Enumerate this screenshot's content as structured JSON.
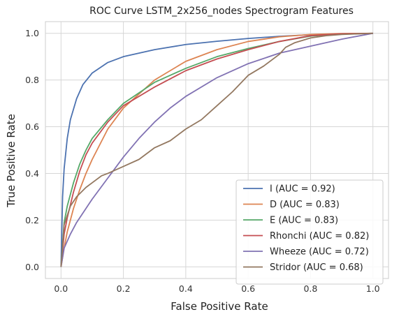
{
  "chart_data": {
    "type": "line",
    "title": "ROC Curve LSTM_2x256_nodes Spectrogram Features",
    "xlabel": "False Positive Rate",
    "ylabel": "True Positive Rate",
    "xlim": [
      -0.05,
      1.05
    ],
    "ylim": [
      -0.05,
      1.05
    ],
    "xticks": [
      0.0,
      0.2,
      0.4,
      0.6,
      0.8,
      1.0
    ],
    "yticks": [
      0.0,
      0.2,
      0.4,
      0.6,
      0.8,
      1.0
    ],
    "xtick_labels": [
      "0.0",
      "0.2",
      "0.4",
      "0.6",
      "0.8",
      "1.0"
    ],
    "ytick_labels": [
      "0.0",
      "0.2",
      "0.4",
      "0.6",
      "0.8",
      "1.0"
    ],
    "grid": true,
    "legend_position": "lower-right",
    "series": [
      {
        "name": "I (AUC = 0.92)",
        "color": "#4c72b0",
        "x": [
          0.0,
          0.005,
          0.01,
          0.02,
          0.03,
          0.05,
          0.07,
          0.1,
          0.15,
          0.2,
          0.3,
          0.4,
          0.5,
          0.6,
          0.7,
          0.8,
          0.9,
          1.0
        ],
        "y": [
          0.0,
          0.3,
          0.42,
          0.55,
          0.63,
          0.72,
          0.78,
          0.83,
          0.875,
          0.9,
          0.93,
          0.952,
          0.966,
          0.978,
          0.987,
          0.994,
          0.998,
          1.0
        ]
      },
      {
        "name": "D (AUC = 0.83)",
        "color": "#dd8452",
        "x": [
          0.0,
          0.01,
          0.02,
          0.04,
          0.06,
          0.08,
          0.1,
          0.15,
          0.2,
          0.3,
          0.4,
          0.5,
          0.6,
          0.7,
          0.8,
          0.9,
          1.0
        ],
        "y": [
          0.0,
          0.08,
          0.15,
          0.25,
          0.33,
          0.4,
          0.46,
          0.59,
          0.68,
          0.8,
          0.88,
          0.93,
          0.965,
          0.985,
          0.995,
          0.999,
          1.0
        ]
      },
      {
        "name": "E (AUC = 0.83)",
        "color": "#55a868",
        "x": [
          0.0,
          0.01,
          0.02,
          0.04,
          0.06,
          0.08,
          0.1,
          0.15,
          0.2,
          0.3,
          0.4,
          0.5,
          0.6,
          0.7,
          0.8,
          0.9,
          1.0
        ],
        "y": [
          0.0,
          0.19,
          0.26,
          0.36,
          0.44,
          0.5,
          0.55,
          0.63,
          0.7,
          0.79,
          0.85,
          0.9,
          0.935,
          0.965,
          0.988,
          0.997,
          1.0
        ]
      },
      {
        "name": "Rhonchi (AUC = 0.82)",
        "color": "#c44e52",
        "x": [
          0.0,
          0.01,
          0.02,
          0.04,
          0.06,
          0.08,
          0.1,
          0.15,
          0.2,
          0.3,
          0.4,
          0.5,
          0.6,
          0.7,
          0.8,
          0.9,
          1.0
        ],
        "y": [
          0.0,
          0.14,
          0.21,
          0.32,
          0.41,
          0.48,
          0.53,
          0.62,
          0.69,
          0.77,
          0.84,
          0.89,
          0.93,
          0.965,
          0.99,
          0.998,
          1.0
        ]
      },
      {
        "name": "Wheeze (AUC = 0.72)",
        "color": "#8172b3",
        "x": [
          0.0,
          0.01,
          0.03,
          0.05,
          0.08,
          0.1,
          0.15,
          0.2,
          0.25,
          0.3,
          0.35,
          0.4,
          0.5,
          0.6,
          0.7,
          0.8,
          0.9,
          1.0
        ],
        "y": [
          0.0,
          0.08,
          0.14,
          0.19,
          0.25,
          0.29,
          0.38,
          0.47,
          0.55,
          0.62,
          0.68,
          0.73,
          0.81,
          0.87,
          0.915,
          0.945,
          0.975,
          1.0
        ]
      },
      {
        "name": "Stridor (AUC = 0.68)",
        "color": "#937860",
        "x": [
          0.0,
          0.01,
          0.03,
          0.05,
          0.08,
          0.1,
          0.13,
          0.15,
          0.2,
          0.25,
          0.3,
          0.35,
          0.4,
          0.45,
          0.5,
          0.55,
          0.6,
          0.65,
          0.7,
          0.72,
          0.75,
          0.8,
          0.85,
          0.9,
          1.0
        ],
        "y": [
          0.0,
          0.18,
          0.26,
          0.3,
          0.34,
          0.36,
          0.39,
          0.4,
          0.43,
          0.46,
          0.51,
          0.54,
          0.59,
          0.63,
          0.69,
          0.75,
          0.82,
          0.86,
          0.91,
          0.94,
          0.96,
          0.98,
          0.99,
          0.995,
          1.0
        ]
      }
    ]
  }
}
